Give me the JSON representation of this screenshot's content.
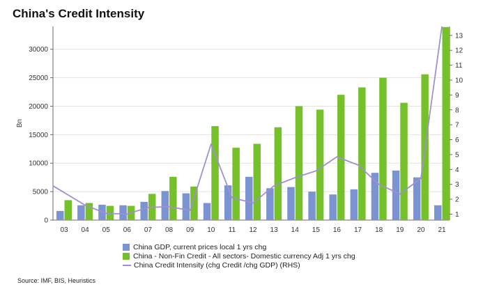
{
  "chart_data": {
    "type": "bar",
    "title": "China's Credit Intensity",
    "ylabel": "Bn",
    "categories": [
      "03",
      "04",
      "05",
      "06",
      "07",
      "08",
      "09",
      "10",
      "11",
      "12",
      "13",
      "14",
      "15",
      "16",
      "17",
      "18",
      "19",
      "20",
      "21"
    ],
    "ylim": [
      0,
      34000
    ],
    "y2lim": [
      0.6,
      13.6
    ],
    "yticks": [
      0,
      5000,
      10000,
      15000,
      20000,
      25000,
      30000
    ],
    "y2ticks": [
      1,
      2,
      3,
      4,
      5,
      6,
      7,
      8,
      9,
      10,
      11,
      12,
      13
    ],
    "series": [
      {
        "name": "China GDP, current prices local 1 yrs chg",
        "type": "bar",
        "color": "#7b93d0",
        "axis": "left",
        "values": [
          1600,
          2600,
          2700,
          2600,
          3200,
          5100,
          4700,
          3000,
          6100,
          7600,
          5600,
          5800,
          5000,
          4500,
          5400,
          8300,
          8700,
          7500,
          2600
        ]
      },
      {
        "name": "China - Non-Fin Credit - All sectors- Domestic currency Adj 1 yrs chg",
        "type": "bar",
        "color": "#76c02b",
        "axis": "left",
        "values": [
          3500,
          3000,
          2500,
          2500,
          4600,
          7600,
          5900,
          16500,
          12700,
          13400,
          16300,
          20000,
          19400,
          22000,
          23300,
          25000,
          20600,
          25600,
          33900
        ]
      },
      {
        "name": "China Credit Intensity (chg Credit /chg GDP) (RHS)",
        "type": "line",
        "color": "#a28fd0",
        "axis": "right",
        "values": [
          2.9,
          1.6,
          1.05,
          1.0,
          1.45,
          1.5,
          1.25,
          5.7,
          2.1,
          1.75,
          2.9,
          3.45,
          3.9,
          4.85,
          4.3,
          3.0,
          2.35,
          3.4,
          13.6
        ]
      }
    ],
    "legend_position": "bottom"
  },
  "source": "Source: IMF, BIS, Heuristics"
}
